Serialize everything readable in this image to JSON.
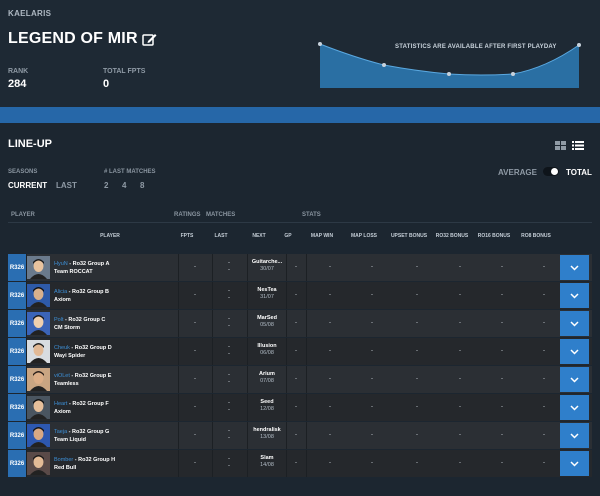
{
  "header": {
    "username": "KAELARIS",
    "team_name": "LEGEND OF MIR",
    "rank_label": "RANK",
    "rank_value": "284",
    "fpts_label": "TOTAL FPTS",
    "fpts_value": "0",
    "graph_note": "STATISTICS ARE AVAILABLE AFTER FIRST PLAYDAY"
  },
  "lineup": {
    "title": "LINE-UP",
    "seasons_label": "SEASONS",
    "season_current": "CURRENT",
    "season_last": "LAST",
    "last_matches_label": "# LAST MATCHES",
    "last_matches_options": [
      "2",
      "4",
      "8"
    ],
    "average_label": "AVERAGE",
    "total_label": "TOTAL",
    "toggle_state": "total"
  },
  "table": {
    "groups": {
      "player": "PLAYER",
      "ratings": "RATINGS",
      "matches": "MATCHES",
      "stats": "STATS"
    },
    "columns": {
      "player": "PLAYER",
      "fpts": "FPTS",
      "last": "LAST",
      "next": "NEXT",
      "gp": "GP",
      "map_win": "MAP WIN",
      "map_loss": "MAP LOSS",
      "upset": "UPSET BONUS",
      "ro32": "RO32 BONUS",
      "ro16": "RO16 BONUS",
      "ro8": "RO8 BONUS"
    },
    "rows": [
      {
        "rank": "R326",
        "name": "HyuN",
        "group": "Ro32 Group A",
        "team": "Team ROCCAT",
        "fpts": "-",
        "last1": "-",
        "last2": "-",
        "next_opp": "Guitarche...",
        "next_date": "30/07",
        "gp": "-",
        "map_win": "-",
        "map_loss": "-",
        "upset": "-",
        "ro32": "-",
        "ro16": "-",
        "ro8": "-"
      },
      {
        "rank": "R326",
        "name": "Alicia",
        "group": "Ro32 Group B",
        "team": "Axiom",
        "fpts": "-",
        "last1": "-",
        "last2": "-",
        "next_opp": "NesTea",
        "next_date": "31/07",
        "gp": "-",
        "map_win": "-",
        "map_loss": "-",
        "upset": "-",
        "ro32": "-",
        "ro16": "-",
        "ro8": "-"
      },
      {
        "rank": "R326",
        "name": "Polt",
        "group": "Ro32 Group C",
        "team": "CM Storm",
        "fpts": "-",
        "last1": "-",
        "last2": "-",
        "next_opp": "MarSed",
        "next_date": "05/08",
        "gp": "-",
        "map_win": "-",
        "map_loss": "-",
        "upset": "-",
        "ro32": "-",
        "ro16": "-",
        "ro8": "-"
      },
      {
        "rank": "R326",
        "name": "Cheuk",
        "group": "Ro32 Group D",
        "team": "Wayi Spider",
        "fpts": "-",
        "last1": "-",
        "last2": "-",
        "next_opp": "Illusion",
        "next_date": "06/08",
        "gp": "-",
        "map_win": "-",
        "map_loss": "-",
        "upset": "-",
        "ro32": "-",
        "ro16": "-",
        "ro8": "-"
      },
      {
        "rank": "R326",
        "name": "viOLet",
        "group": "Ro32 Group E",
        "team": "Teamless",
        "fpts": "-",
        "last1": "-",
        "last2": "-",
        "next_opp": "Arium",
        "next_date": "07/08",
        "gp": "-",
        "map_win": "-",
        "map_loss": "-",
        "upset": "-",
        "ro32": "-",
        "ro16": "-",
        "ro8": "-"
      },
      {
        "rank": "R326",
        "name": "Heart",
        "group": "Ro32 Group F",
        "team": "Axiom",
        "fpts": "-",
        "last1": "-",
        "last2": "-",
        "next_opp": "Seed",
        "next_date": "12/08",
        "gp": "-",
        "map_win": "-",
        "map_loss": "-",
        "upset": "-",
        "ro32": "-",
        "ro16": "-",
        "ro8": "-"
      },
      {
        "rank": "R326",
        "name": "Taeja",
        "group": "Ro32 Group G",
        "team": "Team Liquid",
        "fpts": "-",
        "last1": "-",
        "last2": "-",
        "next_opp": "hendralisk",
        "next_date": "13/08",
        "gp": "-",
        "map_win": "-",
        "map_loss": "-",
        "upset": "-",
        "ro32": "-",
        "ro16": "-",
        "ro8": "-"
      },
      {
        "rank": "R326",
        "name": "Bomber",
        "group": "Ro32 Group H",
        "team": "Red Bull",
        "fpts": "-",
        "last1": "-",
        "last2": "-",
        "next_opp": "Slam",
        "next_date": "14/08",
        "gp": "-",
        "map_win": "-",
        "map_loss": "-",
        "upset": "-",
        "ro32": "-",
        "ro16": "-",
        "ro8": "-"
      }
    ]
  },
  "colors": {
    "accent_blue": "#2f7fcb",
    "rank_blue": "#2a6eb2",
    "banner_blue": "#2667a8",
    "player_name": "#3d8fd6",
    "background": "#1c2630"
  },
  "icons": [
    "edit-icon",
    "grid-view-icon",
    "list-view-icon",
    "chevron-down-icon",
    "avatar"
  ]
}
